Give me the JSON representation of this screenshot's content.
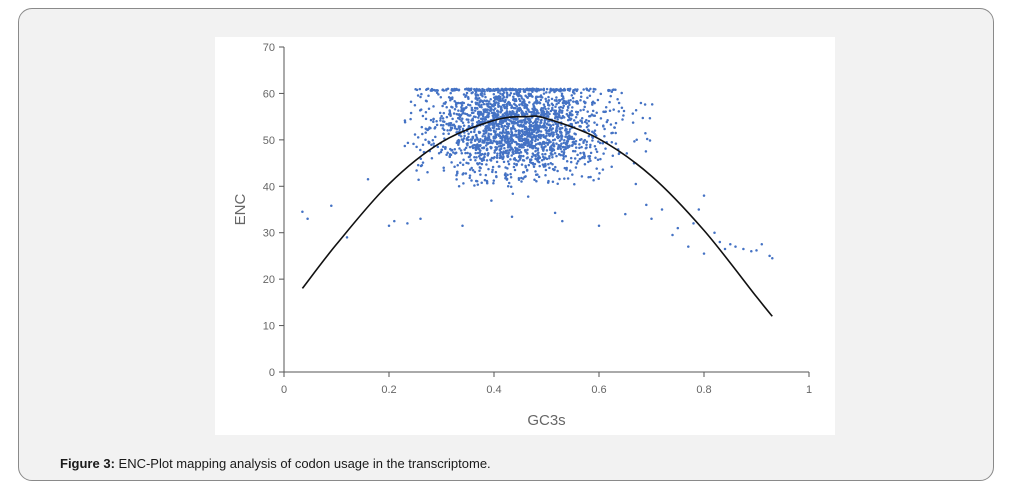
{
  "figure": {
    "caption_lead": "Figure 3:",
    "caption_text": " ENC-Plot mapping analysis of codon usage in the transcriptome."
  },
  "chart_data": {
    "type": "scatter",
    "xlabel": "GC3s",
    "ylabel": "ENC",
    "xlim": [
      0,
      1
    ],
    "ylim": [
      0,
      70
    ],
    "x_ticks": [
      0,
      0.2,
      0.4,
      0.6,
      0.8,
      1
    ],
    "x_tick_labels": [
      "0",
      "0.2",
      "0.4",
      "0.6",
      "0.8",
      "1"
    ],
    "y_ticks": [
      0,
      10,
      20,
      30,
      40,
      50,
      60,
      70
    ],
    "y_tick_labels": [
      "0",
      "10",
      "20",
      "30",
      "40",
      "50",
      "60",
      "70"
    ],
    "grid": false,
    "point_color": "#4472c4",
    "curve_color": "#111111",
    "series": [
      {
        "kind": "scatter",
        "cluster": {
          "x_mean": 0.44,
          "x_sd": 0.085,
          "y_mean": 53,
          "y_sd": 5.5,
          "y_max": 61,
          "count": 2200
        },
        "points": [
          [
            0.035,
            34.5
          ],
          [
            0.045,
            33
          ],
          [
            0.09,
            35.8
          ],
          [
            0.12,
            29
          ],
          [
            0.16,
            41.5
          ],
          [
            0.2,
            31.5
          ],
          [
            0.21,
            32.5
          ],
          [
            0.235,
            32
          ],
          [
            0.26,
            33
          ],
          [
            0.34,
            31.5
          ],
          [
            0.53,
            32.5
          ],
          [
            0.6,
            31.5
          ],
          [
            0.65,
            34
          ],
          [
            0.7,
            33
          ],
          [
            0.72,
            35
          ],
          [
            0.75,
            31
          ],
          [
            0.78,
            32
          ],
          [
            0.79,
            35
          ],
          [
            0.8,
            38
          ],
          [
            0.82,
            30
          ],
          [
            0.83,
            28
          ],
          [
            0.84,
            26.5
          ],
          [
            0.85,
            27.5
          ],
          [
            0.86,
            27
          ],
          [
            0.875,
            26.5
          ],
          [
            0.89,
            26
          ],
          [
            0.9,
            26.2
          ],
          [
            0.91,
            27.5
          ],
          [
            0.925,
            25
          ],
          [
            0.93,
            24.5
          ],
          [
            0.8,
            25.5
          ],
          [
            0.77,
            27
          ],
          [
            0.74,
            29.5
          ],
          [
            0.69,
            36
          ],
          [
            0.67,
            40.5
          ]
        ]
      },
      {
        "kind": "line",
        "x": [
          0.035,
          0.1,
          0.2,
          0.3,
          0.4,
          0.46,
          0.5,
          0.6,
          0.7,
          0.8,
          0.9,
          0.93
        ],
        "y": [
          18,
          27.5,
          40.5,
          49.5,
          54.2,
          55,
          54.6,
          50.2,
          42.2,
          30.5,
          16.2,
          12
        ]
      }
    ]
  }
}
